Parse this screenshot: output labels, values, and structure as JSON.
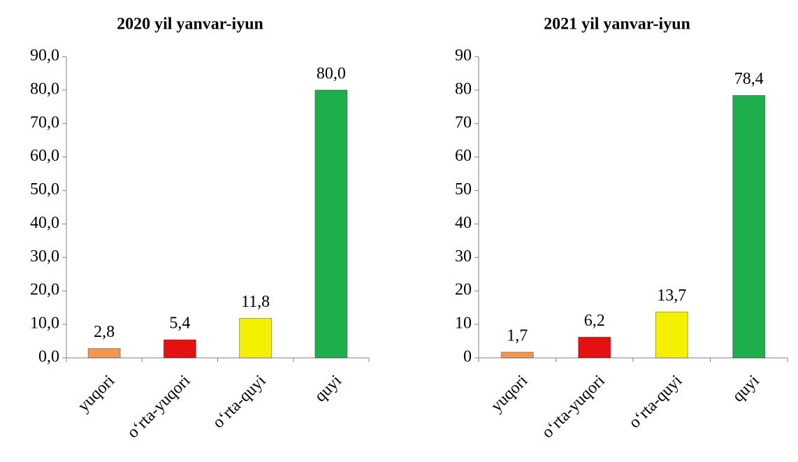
{
  "chart_data": [
    {
      "type": "bar",
      "title": "2020 yil yanvar-iyun",
      "categories": [
        "yuqori",
        "oʻrta-yuqori",
        "oʻrta-quyi",
        "quyi"
      ],
      "values": [
        2.8,
        5.4,
        11.8,
        80.0
      ],
      "value_labels": [
        "2,8",
        "5,4",
        "11,8",
        "80,0"
      ],
      "colors": [
        "#f0964e",
        "#e51010",
        "#f5f000",
        "#1fae4c"
      ],
      "ylim": [
        0,
        90
      ],
      "yticks": [
        {
          "value": 0,
          "label": "0,0"
        },
        {
          "value": 10,
          "label": "10,0"
        },
        {
          "value": 20,
          "label": "20,0"
        },
        {
          "value": 30,
          "label": "30,0"
        },
        {
          "value": 40,
          "label": "40,0"
        },
        {
          "value": 50,
          "label": "50,0"
        },
        {
          "value": 60,
          "label": "60,0"
        },
        {
          "value": 70,
          "label": "70,0"
        },
        {
          "value": 80,
          "label": "80,0"
        },
        {
          "value": 90,
          "label": "90,0"
        }
      ],
      "grid": false
    },
    {
      "type": "bar",
      "title": "2021 yil yanvar-iyun",
      "categories": [
        "yuqori",
        "oʻrta-yuqori",
        "oʻrta-quyi",
        "quyi"
      ],
      "values": [
        1.7,
        6.2,
        13.7,
        78.4
      ],
      "value_labels": [
        "1,7",
        "6,2",
        "13,7",
        "78,4"
      ],
      "colors": [
        "#f0964e",
        "#e51010",
        "#f5f000",
        "#1fae4c"
      ],
      "ylim": [
        0,
        90
      ],
      "yticks": [
        0,
        10,
        20,
        30,
        40,
        50,
        60,
        70,
        80,
        90
      ],
      "grid": false
    }
  ]
}
